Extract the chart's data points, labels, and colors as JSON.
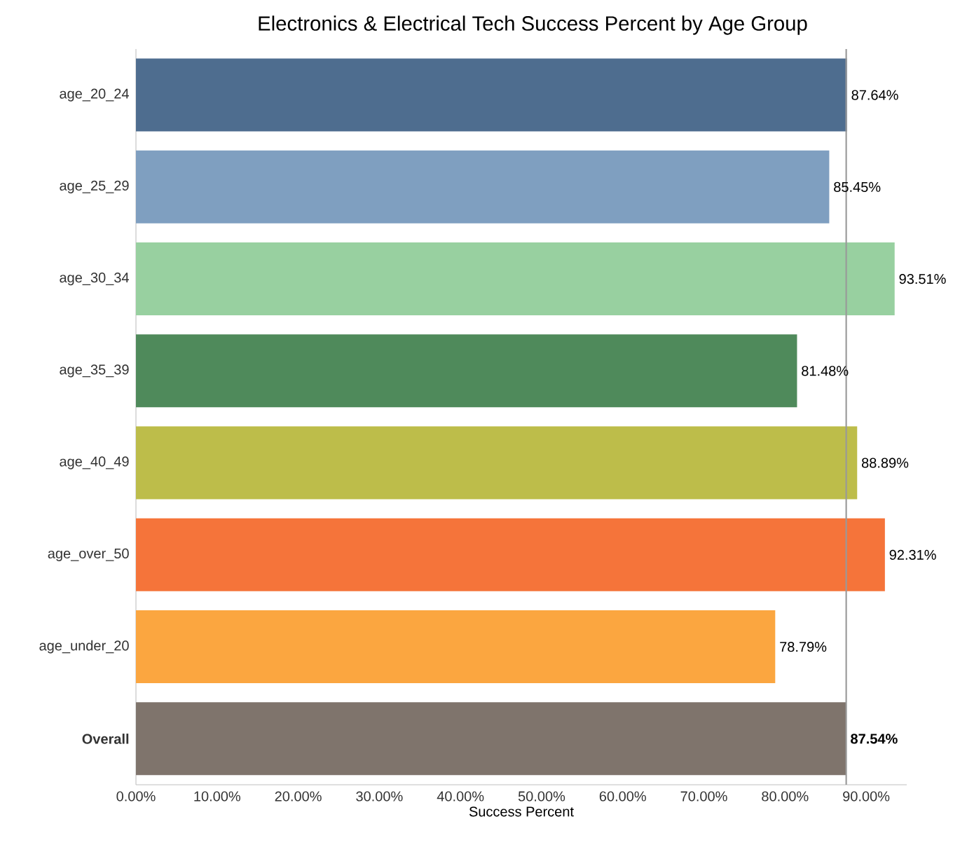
{
  "chart_data": {
    "type": "bar",
    "orientation": "horizontal",
    "title": "Electronics & Electrical Tech Success Percent by Age Group",
    "xlabel": "Success Percent",
    "categories": [
      "age_20_24",
      "age_25_29",
      "age_30_34",
      "age_35_39",
      "age_40_49",
      "age_over_50",
      "age_under_20",
      "Overall"
    ],
    "values": [
      87.64,
      85.45,
      93.51,
      81.48,
      88.89,
      92.31,
      78.79,
      87.54
    ],
    "value_labels": [
      "87.64%",
      "85.45%",
      "93.51%",
      "81.48%",
      "88.89%",
      "92.31%",
      "78.79%",
      "87.54%"
    ],
    "colors": [
      "#4e6d8f",
      "#7f9fc0",
      "#98d0a0",
      "#4f8a5b",
      "#bdbd4a",
      "#f5743a",
      "#fba640",
      "#7f746c"
    ],
    "xlim": [
      0,
      95
    ],
    "xticks": [
      {
        "value": 0,
        "label": "0.00%"
      },
      {
        "value": 10,
        "label": "10.00%"
      },
      {
        "value": 20,
        "label": "20.00%"
      },
      {
        "value": 30,
        "label": "30.00%"
      },
      {
        "value": 40,
        "label": "40.00%"
      },
      {
        "value": 50,
        "label": "50.00%"
      },
      {
        "value": 60,
        "label": "60.00%"
      },
      {
        "value": 70,
        "label": "70.00%"
      },
      {
        "value": 80,
        "label": "80.00%"
      },
      {
        "value": 90,
        "label": "90.00%"
      }
    ],
    "ref_lines": [
      {
        "axis": "x",
        "value": 87.54,
        "color": "#999999"
      }
    ]
  }
}
